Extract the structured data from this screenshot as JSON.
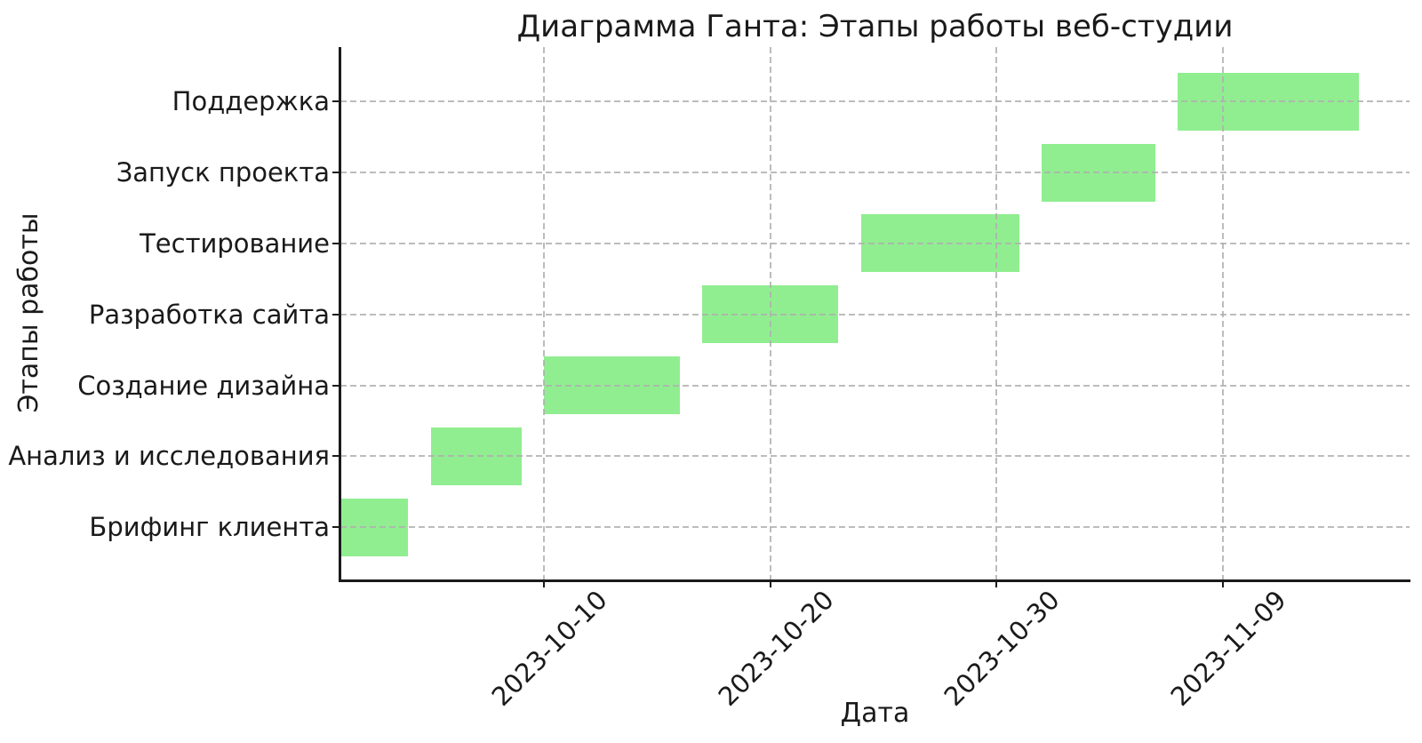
{
  "chart_data": {
    "type": "bar",
    "subtype": "gantt-horizontal",
    "title": "Диаграмма Ганта: Этапы работы веб-студии",
    "xlabel": "Дата",
    "ylabel": "Этапы работы",
    "categories_bottom_to_top": [
      "Брифинг клиента",
      "Анализ и исследования",
      "Создание дизайна",
      "Разработка сайта",
      "Тестирование",
      "Запуск проекта",
      "Поддержка"
    ],
    "tasks": [
      {
        "name": "Брифинг клиента",
        "start": "2023-10-01",
        "end": "2023-10-04",
        "duration_days": 3
      },
      {
        "name": "Анализ и исследования",
        "start": "2023-10-05",
        "end": "2023-10-09",
        "duration_days": 4
      },
      {
        "name": "Создание дизайна",
        "start": "2023-10-10",
        "end": "2023-10-16",
        "duration_days": 6
      },
      {
        "name": "Разработка сайта",
        "start": "2023-10-17",
        "end": "2023-10-23",
        "duration_days": 6
      },
      {
        "name": "Тестирование",
        "start": "2023-10-24",
        "end": "2023-10-31",
        "duration_days": 7
      },
      {
        "name": "Запуск проекта",
        "start": "2023-11-01",
        "end": "2023-11-06",
        "duration_days": 5
      },
      {
        "name": "Поддержка",
        "start": "2023-11-07",
        "end": "2023-11-15",
        "duration_days": 8
      }
    ],
    "x_ticks": [
      "2023-10-10",
      "2023-10-20",
      "2023-10-30",
      "2023-11-09"
    ],
    "x_range": [
      "2023-10-01",
      "2023-11-17"
    ],
    "bar_color": "#90EE90",
    "grid": true,
    "grid_style": "dashed",
    "grid_color": "#b0b0b0",
    "axis_color": "#1a1a1a",
    "text_color": "#1a1a1a",
    "background": "#ffffff",
    "legend": "none"
  }
}
